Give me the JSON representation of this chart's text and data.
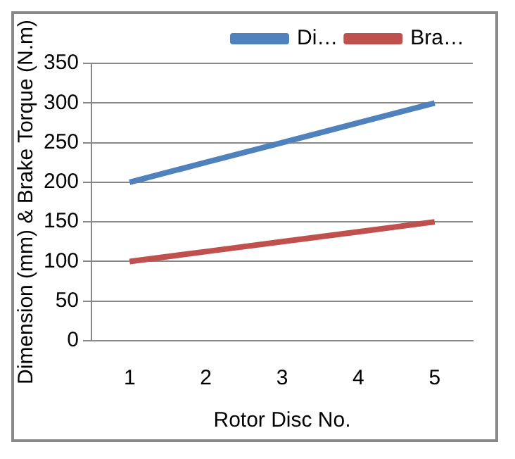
{
  "chart_data": {
    "type": "line",
    "xlabel": "Rotor Disc No.",
    "ylabel": "Dimension (mm) & Brake Torque (N.m)",
    "categories": [
      "1",
      "2",
      "3",
      "4",
      "5"
    ],
    "series": [
      {
        "name": "Di…",
        "color": "#4f81bd",
        "values": [
          200,
          225,
          250,
          275,
          300
        ]
      },
      {
        "name": "Bra…",
        "color": "#c0504d",
        "values": [
          100,
          112.5,
          125,
          137.5,
          150
        ]
      }
    ],
    "ylim": [
      0,
      350
    ],
    "yticks": [
      0,
      50,
      100,
      150,
      200,
      250,
      300,
      350
    ],
    "grid": "y",
    "legend": "top right",
    "marker": "none",
    "line_style": "solid"
  }
}
